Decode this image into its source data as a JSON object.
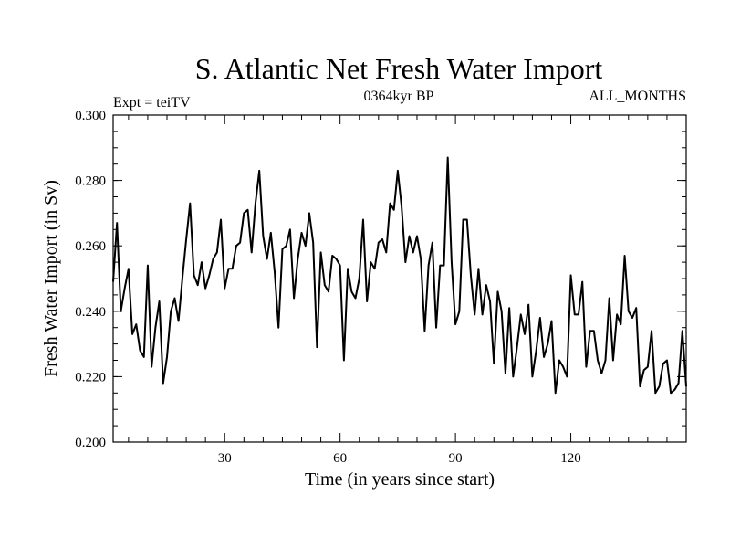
{
  "chart_data": {
    "type": "line",
    "title": "S. Atlantic Net Fresh Water Import",
    "subtitle_left": "Expt = teiTV",
    "subtitle_center": "0364kyr BP",
    "subtitle_right": "ALL_MONTHS",
    "xlabel": "Time (in years since start)",
    "ylabel": "Fresh Water Import (in Sv)",
    "xlim": [
      1,
      150
    ],
    "ylim": [
      0.2,
      0.3
    ],
    "xticks": [
      30,
      60,
      90,
      120
    ],
    "xtick_labels": [
      "30",
      "60",
      "90",
      "120"
    ],
    "yticks": [
      0.2,
      0.22,
      0.24,
      0.26,
      0.28,
      0.3
    ],
    "ytick_labels": [
      "0.200",
      "0.220",
      "0.240",
      "0.260",
      "0.280",
      "0.300"
    ],
    "grid": false,
    "series": [
      {
        "name": "Net Fresh Water Import",
        "color": "#000000",
        "x": [
          1,
          2,
          3,
          4,
          5,
          6,
          7,
          8,
          9,
          10,
          11,
          12,
          13,
          14,
          15,
          16,
          17,
          18,
          19,
          20,
          21,
          22,
          23,
          24,
          25,
          26,
          27,
          28,
          29,
          30,
          31,
          32,
          33,
          34,
          35,
          36,
          37,
          38,
          39,
          40,
          41,
          42,
          43,
          44,
          45,
          46,
          47,
          48,
          49,
          50,
          51,
          52,
          53,
          54,
          55,
          56,
          57,
          58,
          59,
          60,
          61,
          62,
          63,
          64,
          65,
          66,
          67,
          68,
          69,
          70,
          71,
          72,
          73,
          74,
          75,
          76,
          77,
          78,
          79,
          80,
          81,
          82,
          83,
          84,
          85,
          86,
          87,
          88,
          89,
          90,
          91,
          92,
          93,
          94,
          95,
          96,
          97,
          98,
          99,
          100,
          101,
          102,
          103,
          104,
          105,
          106,
          107,
          108,
          109,
          110,
          111,
          112,
          113,
          114,
          115,
          116,
          117,
          118,
          119,
          120,
          121,
          122,
          123,
          124,
          125,
          126,
          127,
          128,
          129,
          130,
          131,
          132,
          133,
          134,
          135,
          136,
          137,
          138,
          139,
          140,
          141,
          142,
          143,
          144,
          145,
          146,
          147,
          148,
          149,
          150
        ],
        "values": [
          0.249,
          0.267,
          0.24,
          0.247,
          0.253,
          0.233,
          0.236,
          0.228,
          0.226,
          0.254,
          0.223,
          0.235,
          0.243,
          0.218,
          0.226,
          0.24,
          0.244,
          0.237,
          0.25,
          0.262,
          0.273,
          0.251,
          0.248,
          0.255,
          0.247,
          0.251,
          0.256,
          0.258,
          0.268,
          0.247,
          0.253,
          0.253,
          0.26,
          0.261,
          0.27,
          0.271,
          0.258,
          0.273,
          0.283,
          0.263,
          0.256,
          0.264,
          0.252,
          0.235,
          0.259,
          0.26,
          0.265,
          0.244,
          0.256,
          0.264,
          0.26,
          0.27,
          0.261,
          0.229,
          0.258,
          0.248,
          0.246,
          0.257,
          0.256,
          0.254,
          0.225,
          0.253,
          0.246,
          0.244,
          0.25,
          0.268,
          0.243,
          0.255,
          0.253,
          0.261,
          0.262,
          0.258,
          0.273,
          0.271,
          0.283,
          0.272,
          0.255,
          0.263,
          0.258,
          0.263,
          0.256,
          0.234,
          0.254,
          0.261,
          0.235,
          0.254,
          0.254,
          0.287,
          0.255,
          0.236,
          0.24,
          0.268,
          0.268,
          0.251,
          0.239,
          0.253,
          0.239,
          0.248,
          0.243,
          0.224,
          0.246,
          0.24,
          0.221,
          0.241,
          0.22,
          0.229,
          0.239,
          0.233,
          0.242,
          0.22,
          0.228,
          0.238,
          0.226,
          0.23,
          0.237,
          0.215,
          0.225,
          0.223,
          0.22,
          0.251,
          0.239,
          0.239,
          0.249,
          0.223,
          0.234,
          0.234,
          0.225,
          0.221,
          0.225,
          0.244,
          0.225,
          0.239,
          0.236,
          0.257,
          0.24,
          0.238,
          0.241,
          0.217,
          0.222,
          0.223,
          0.234,
          0.215,
          0.217,
          0.224,
          0.225,
          0.215,
          0.216,
          0.218,
          0.234,
          0.217
        ]
      }
    ]
  }
}
